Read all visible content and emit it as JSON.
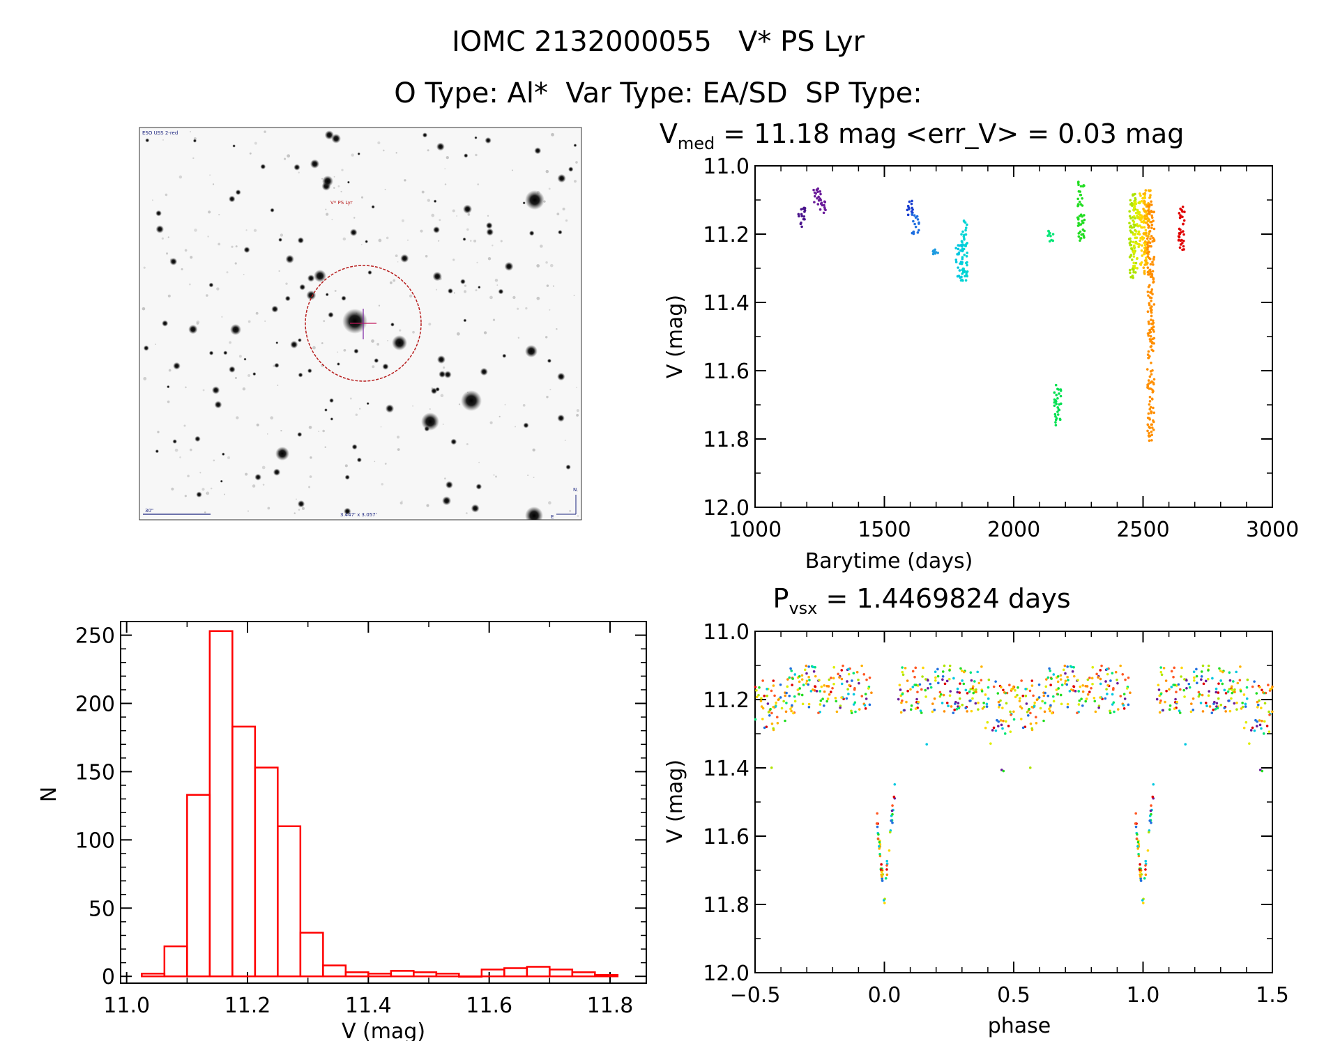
{
  "header": {
    "title_line1": "IOMC 2132000055   V* PS Lyr",
    "title_line2": "O Type: Al*  Var Type: EA/SD  SP Type:"
  },
  "image_panel": {
    "survey_label": "ESO USS 2-red",
    "target_label": "V* PS Lyr",
    "scale_label": "30\"",
    "size_label": "3.447' x 3.057'",
    "north_label": "N",
    "east_label": "E"
  },
  "chart_data": [
    {
      "type": "scatter",
      "title_parts": [
        "V",
        "med",
        " = 11.18 mag <err_V> = 0.03 mag"
      ],
      "xlabel": "Barytime (days)",
      "ylabel": "V (mag)",
      "xlim": [
        1000,
        3000
      ],
      "ylim": [
        12.0,
        11.0
      ],
      "xticks": [
        1000,
        1500,
        2000,
        2500,
        3000
      ],
      "xtick_labels": [
        "1000",
        "1500",
        "2000",
        "2500",
        "3000"
      ],
      "yticks": [
        11.0,
        11.2,
        11.4,
        11.6,
        11.8,
        12.0
      ],
      "ytick_labels": [
        "11.0",
        "11.2",
        "11.4",
        "11.6",
        "11.8",
        "12.0"
      ],
      "clusters": [
        {
          "x": 1180,
          "ymin": 11.12,
          "ymax": 11.18,
          "color": "#4a148c"
        },
        {
          "x": 1240,
          "ymin": 11.06,
          "ymax": 11.12,
          "color": "#6a1b9a"
        },
        {
          "x": 1260,
          "ymin": 11.09,
          "ymax": 11.14,
          "color": "#6a1b9a"
        },
        {
          "x": 1600,
          "ymin": 11.1,
          "ymax": 11.15,
          "color": "#1a3fd1"
        },
        {
          "x": 1620,
          "ymin": 11.14,
          "ymax": 11.2,
          "color": "#1e6fe0"
        },
        {
          "x": 1700,
          "ymin": 11.24,
          "ymax": 11.26,
          "color": "#1e9be0"
        },
        {
          "x": 1790,
          "ymin": 11.23,
          "ymax": 11.33,
          "color": "#00c8e0"
        },
        {
          "x": 1810,
          "ymin": 11.16,
          "ymax": 11.34,
          "color": "#00d4d4"
        },
        {
          "x": 2140,
          "ymin": 11.19,
          "ymax": 11.23,
          "color": "#00e676"
        },
        {
          "x": 2170,
          "ymin": 11.64,
          "ymax": 11.76,
          "color": "#00e050"
        },
        {
          "x": 2260,
          "ymin": 11.04,
          "ymax": 11.22,
          "color": "#22dd22"
        },
        {
          "x": 2460,
          "ymin": 11.08,
          "ymax": 11.33,
          "color": "#aee400"
        },
        {
          "x": 2475,
          "ymin": 11.1,
          "ymax": 11.3,
          "color": "#ddee00"
        },
        {
          "x": 2500,
          "ymin": 11.08,
          "ymax": 11.3,
          "color": "#ffd600"
        },
        {
          "x": 2515,
          "ymin": 11.07,
          "ymax": 11.32,
          "color": "#ffb300"
        },
        {
          "x": 2530,
          "ymin": 11.1,
          "ymax": 11.81,
          "color": "#ff8f00"
        },
        {
          "x": 2650,
          "ymin": 11.12,
          "ymax": 11.25,
          "color": "#e00000"
        }
      ]
    },
    {
      "type": "bar",
      "xlabel": "V (mag)",
      "ylabel": "N",
      "xlim": [
        10.99,
        11.86
      ],
      "ylim": [
        -5,
        260
      ],
      "xticks": [
        11.0,
        11.2,
        11.4,
        11.6,
        11.8
      ],
      "xtick_labels": [
        "11.0",
        "11.2",
        "11.4",
        "11.6",
        "11.8"
      ],
      "yticks": [
        0,
        50,
        100,
        150,
        200,
        250
      ],
      "ytick_labels": [
        "0",
        "50",
        "100",
        "150",
        "200",
        "250"
      ],
      "bin_width": 0.0375,
      "bin_starts": [
        11.025,
        11.0625,
        11.1,
        11.1375,
        11.175,
        11.2125,
        11.25,
        11.2875,
        11.325,
        11.3625,
        11.4,
        11.4375,
        11.475,
        11.5125,
        11.55,
        11.5875,
        11.625,
        11.6625,
        11.7,
        11.7375,
        11.775
      ],
      "counts": [
        2,
        22,
        133,
        253,
        183,
        153,
        110,
        32,
        8,
        3,
        2,
        4,
        3,
        2,
        0,
        5,
        6,
        7,
        5,
        3,
        1
      ],
      "color": "#ff0000"
    },
    {
      "type": "scatter",
      "title_parts": [
        "P",
        "vsx",
        " = 1.4469824 days"
      ],
      "xlabel": "phase",
      "ylabel": "V (mag)",
      "xlim": [
        -0.5,
        1.5
      ],
      "ylim": [
        12.0,
        11.0
      ],
      "xticks": [
        -0.5,
        0.0,
        0.5,
        1.0,
        1.5
      ],
      "xtick_labels": [
        "−0.5",
        "0.0",
        "0.5",
        "1.0",
        "1.5"
      ],
      "yticks": [
        11.0,
        11.2,
        11.4,
        11.6,
        11.8,
        12.0
      ],
      "ytick_labels": [
        "11.0",
        "11.2",
        "11.4",
        "11.6",
        "11.8",
        "12.0"
      ],
      "period_days": 1.4469824
    }
  ]
}
